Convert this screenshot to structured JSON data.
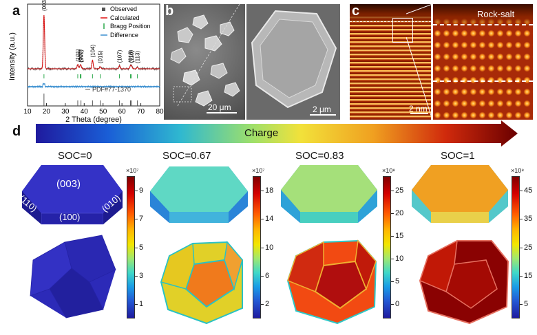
{
  "panel_labels": {
    "a": "a",
    "b": "b",
    "c": "c",
    "d": "d"
  },
  "xrd": {
    "xlabel": "2 Theta (degree)",
    "ylabel": "Intensity (a.u.)",
    "xticks": [
      "10",
      "20",
      "30",
      "40",
      "50",
      "60",
      "70",
      "80"
    ],
    "legend": [
      "Observed",
      "Calculated",
      "Bragg Position",
      "Difference"
    ],
    "reference": "PDF#77-1370",
    "peak_labels": [
      "(003)",
      "(101)",
      "(006)",
      "(102)",
      "(104)",
      "(015)",
      "(107)",
      "(018)",
      "(110)",
      "(113)"
    ],
    "colors": {
      "observed": "#555555",
      "calculated": "#e01010",
      "bragg": "#2aa84a",
      "difference": "#3a8fd0"
    }
  },
  "chart_data": {
    "type": "line",
    "title": "",
    "xlabel": "2 Theta (degree)",
    "ylabel": "Intensity (a.u.)",
    "xlim": [
      10,
      80
    ],
    "series": [
      {
        "name": "Calculated",
        "x": [
          18.7,
          36.6,
          37.9,
          38.3,
          44.4,
          48.5,
          58.7,
          64.5,
          65.1,
          68.2
        ],
        "y": [
          100,
          8,
          5,
          4,
          16,
          4,
          6,
          5,
          5,
          3
        ]
      }
    ],
    "bragg_positions": [
      18.7,
      36.6,
      37.9,
      38.3,
      44.4,
      48.5,
      58.7,
      64.5,
      65.1,
      68.2
    ],
    "reference_lines": [
      18.7,
      36.6,
      38.3,
      44.4,
      48.5,
      58.7,
      64.5,
      65.1,
      68.2
    ]
  },
  "sem": {
    "scale_left": "20 μm",
    "scale_right": "2 μm"
  },
  "stem": {
    "scale": "2 nm",
    "region_label": "Rock-salt"
  },
  "charge_arrow": {
    "label": "Charge"
  },
  "soc_panels": [
    {
      "label": "SOC=0",
      "multiplier": "×10⁷",
      "ticks": [
        "9",
        "7",
        "5",
        "3",
        "1"
      ],
      "top_colors": [
        "#2a28b6",
        "#3432c6",
        "#1f1d98"
      ],
      "bottom_colors": [
        "#2c2ab8",
        "#3331c4",
        "#22209e"
      ],
      "facets": [
        "(003)",
        "(110)",
        "(100)",
        "(010)"
      ]
    },
    {
      "label": "SOC=0.67",
      "multiplier": "×10⁷",
      "ticks": [
        "18",
        "14",
        "10",
        "6",
        "2"
      ],
      "top_colors": [
        "#5fd8c4",
        "#41b3dc",
        "#2a84d8"
      ],
      "bottom_colors": [
        "#f07a1c",
        "#e1d028",
        "#29c2c4"
      ]
    },
    {
      "label": "SOC=0.83",
      "multiplier": "×10⁸",
      "ticks": [
        "25",
        "20",
        "15",
        "10",
        "5",
        "0"
      ],
      "top_colors": [
        "#a5e07a",
        "#48cfc0",
        "#2ea2d8"
      ],
      "bottom_colors": [
        "#b00e0e",
        "#f24a12",
        "#f0b030"
      ]
    },
    {
      "label": "SOC=1",
      "multiplier": "×10⁸",
      "ticks": [
        "45",
        "35",
        "25",
        "15",
        "5"
      ],
      "top_colors": [
        "#f0a022",
        "#e9d04a",
        "#54c8ca"
      ],
      "bottom_colors": [
        "#8a0202",
        "#c11806",
        "#e67060"
      ]
    }
  ]
}
